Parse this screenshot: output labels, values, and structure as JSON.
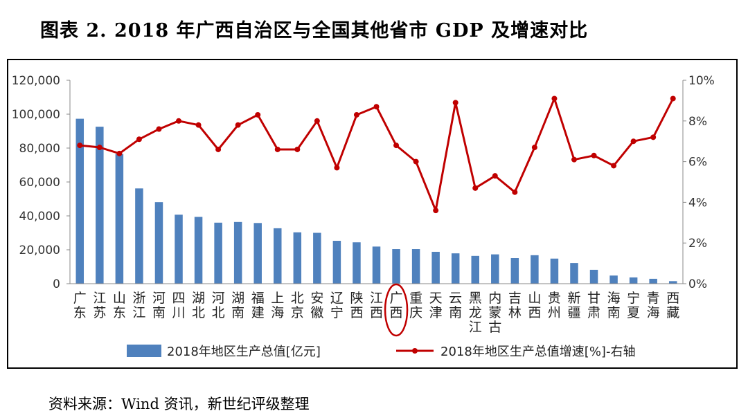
{
  "figure": {
    "title": "图表 2.   2018 年广西自治区与全国其他省市 GDP 及增速对比",
    "source": "资料来源：Wind 资讯，新世纪评级整理"
  },
  "chart_data": {
    "type": "bar",
    "categories": [
      "广东",
      "江苏",
      "山东",
      "浙江",
      "河南",
      "四川",
      "湖北",
      "河北",
      "湖南",
      "福建",
      "上海",
      "北京",
      "安徽",
      "辽宁",
      "陕西",
      "江西",
      "广西",
      "重庆",
      "天津",
      "云南",
      "黑龙江",
      "内蒙古",
      "吉林",
      "山西",
      "贵州",
      "新疆",
      "甘肃",
      "海南",
      "宁夏",
      "青海",
      "西藏"
    ],
    "series": [
      {
        "name": "2018年地区生产总值[亿元]",
        "type": "bar",
        "axis": "left",
        "color": "#4f81bd",
        "values": [
          97300,
          92600,
          76500,
          56200,
          48100,
          40700,
          39400,
          36000,
          36400,
          35800,
          32700,
          30300,
          30000,
          25300,
          24400,
          21900,
          20400,
          20400,
          18800,
          17900,
          16400,
          17300,
          15100,
          16800,
          14800,
          12200,
          8200,
          4800,
          3700,
          2900,
          1500
        ]
      },
      {
        "name": "2018年地区生产总值增速[%]-右轴",
        "type": "line",
        "axis": "right",
        "color": "#c00000",
        "values": [
          6.8,
          6.7,
          6.4,
          7.1,
          7.6,
          8.0,
          7.8,
          6.6,
          7.8,
          8.3,
          6.6,
          6.6,
          8.0,
          5.7,
          8.3,
          8.7,
          6.8,
          6.0,
          3.6,
          8.9,
          4.7,
          5.3,
          4.5,
          6.7,
          9.1,
          6.1,
          6.3,
          5.8,
          7.0,
          7.2,
          9.1
        ]
      }
    ],
    "y_left": {
      "ylim": [
        0,
        120000
      ],
      "ticks": [
        "0",
        "20,000",
        "40,000",
        "60,000",
        "80,000",
        "100,000",
        "120,000"
      ]
    },
    "y_right": {
      "ylim": [
        0,
        10
      ],
      "ticks": [
        "0%",
        "2%",
        "4%",
        "6%",
        "8%",
        "10%"
      ]
    },
    "highlight_category": "广西",
    "grid": false,
    "legend_position": "bottom"
  }
}
